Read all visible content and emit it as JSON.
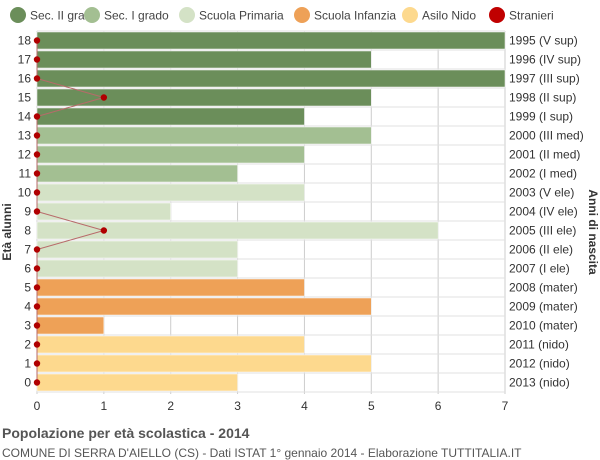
{
  "chart_data": {
    "type": "bar",
    "orientation": "horizontal",
    "title": "Popolazione per età scolastica - 2014",
    "subtitle": "COMUNE DI SERRA D'AIELLO (CS) - Dati ISTAT 1° gennaio 2014 - Elaborazione TUTTITALIA.IT",
    "ylabel": "Età alunni",
    "ylabel_right": "Anni di nascita",
    "xlim": [
      0,
      7
    ],
    "x_ticks": [
      0,
      1,
      2,
      3,
      4,
      5,
      6,
      7
    ],
    "grid": true,
    "legend_position": "top",
    "legend": [
      {
        "name": "Sec. II grado",
        "color": "#6b8e5a"
      },
      {
        "name": "Sec. I grado",
        "color": "#a3bf92"
      },
      {
        "name": "Scuola Primaria",
        "color": "#d4e2c6"
      },
      {
        "name": "Scuola Infanzia",
        "color": "#eea157"
      },
      {
        "name": "Asilo Nido",
        "color": "#fdd98e"
      },
      {
        "name": "Stranieri",
        "color": "#c00000"
      }
    ],
    "rows": [
      {
        "age": "18",
        "year": "1995 (V sup)",
        "value": 7,
        "group": 0,
        "stranieri": 0
      },
      {
        "age": "17",
        "year": "1996 (IV sup)",
        "value": 5,
        "group": 0,
        "stranieri": 0
      },
      {
        "age": "16",
        "year": "1997 (III sup)",
        "value": 7,
        "group": 0,
        "stranieri": 0
      },
      {
        "age": "15",
        "year": "1998 (II sup)",
        "value": 5,
        "group": 0,
        "stranieri": 1
      },
      {
        "age": "14",
        "year": "1999 (I sup)",
        "value": 4,
        "group": 0,
        "stranieri": 0
      },
      {
        "age": "13",
        "year": "2000 (III med)",
        "value": 5,
        "group": 1,
        "stranieri": 0
      },
      {
        "age": "12",
        "year": "2001 (II med)",
        "value": 4,
        "group": 1,
        "stranieri": 0
      },
      {
        "age": "11",
        "year": "2002 (I med)",
        "value": 3,
        "group": 1,
        "stranieri": 0
      },
      {
        "age": "10",
        "year": "2003 (V ele)",
        "value": 4,
        "group": 2,
        "stranieri": 0
      },
      {
        "age": "9",
        "year": "2004 (IV ele)",
        "value": 2,
        "group": 2,
        "stranieri": 0
      },
      {
        "age": "8",
        "year": "2005 (III ele)",
        "value": 6,
        "group": 2,
        "stranieri": 1
      },
      {
        "age": "7",
        "year": "2006 (II ele)",
        "value": 3,
        "group": 2,
        "stranieri": 0
      },
      {
        "age": "6",
        "year": "2007 (I ele)",
        "value": 3,
        "group": 2,
        "stranieri": 0
      },
      {
        "age": "5",
        "year": "2008 (mater)",
        "value": 4,
        "group": 3,
        "stranieri": 0
      },
      {
        "age": "4",
        "year": "2009 (mater)",
        "value": 5,
        "group": 3,
        "stranieri": 0
      },
      {
        "age": "3",
        "year": "2010 (mater)",
        "value": 1,
        "group": 3,
        "stranieri": 0
      },
      {
        "age": "2",
        "year": "2011 (nido)",
        "value": 4,
        "group": 4,
        "stranieri": 0
      },
      {
        "age": "1",
        "year": "2012 (nido)",
        "value": 5,
        "group": 4,
        "stranieri": 0
      },
      {
        "age": "0",
        "year": "2013 (nido)",
        "value": 3,
        "group": 4,
        "stranieri": 0
      }
    ]
  }
}
